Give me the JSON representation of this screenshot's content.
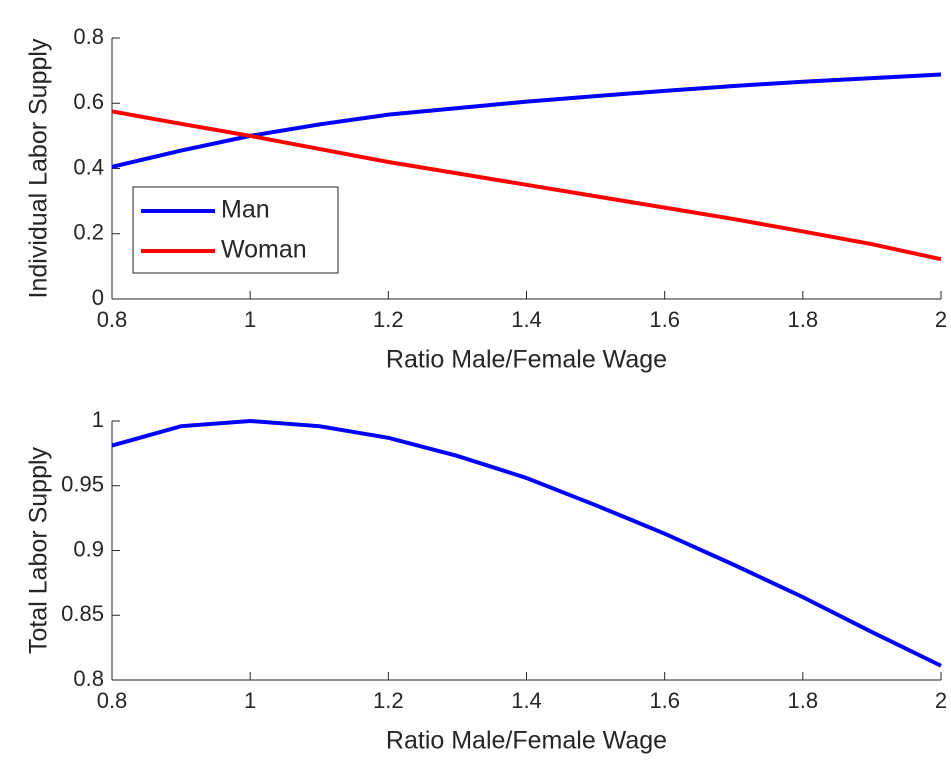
{
  "chart_data": [
    {
      "type": "line",
      "xlabel": "Ratio Male/Female Wage",
      "ylabel": "Individual Labor Supply",
      "x": [
        0.8,
        0.9,
        1.0,
        1.1,
        1.2,
        1.3,
        1.4,
        1.5,
        1.6,
        1.7,
        1.8,
        1.9,
        2.0
      ],
      "series": [
        {
          "name": "Man",
          "color": "#0000ff",
          "values": [
            0.405,
            0.455,
            0.5,
            0.535,
            0.565,
            0.585,
            0.605,
            0.622,
            0.638,
            0.653,
            0.666,
            0.677,
            0.688
          ]
        },
        {
          "name": "Woman",
          "color": "#ff0000",
          "values": [
            0.575,
            0.537,
            0.5,
            0.46,
            0.42,
            0.385,
            0.35,
            0.315,
            0.28,
            0.245,
            0.207,
            0.168,
            0.122
          ]
        }
      ],
      "xlim": [
        0.8,
        2
      ],
      "xticks": [
        0.8,
        1,
        1.2,
        1.4,
        1.6,
        1.8,
        2
      ],
      "ylim": [
        0,
        0.8
      ],
      "yticks": [
        0,
        0.2,
        0.4,
        0.6,
        0.8
      ],
      "legend": "southwest"
    },
    {
      "type": "line",
      "xlabel": "Ratio Male/Female Wage",
      "ylabel": "Total Labor Supply",
      "x": [
        0.8,
        0.9,
        1.0,
        1.1,
        1.2,
        1.3,
        1.4,
        1.5,
        1.6,
        1.7,
        1.8,
        1.9,
        2.0
      ],
      "series": [
        {
          "color": "#0000ff",
          "values": [
            0.981,
            0.996,
            1.0,
            0.996,
            0.987,
            0.973,
            0.956,
            0.935,
            0.913,
            0.889,
            0.864,
            0.837,
            0.811
          ]
        }
      ],
      "xlim": [
        0.8,
        2
      ],
      "xticks": [
        0.8,
        1,
        1.2,
        1.4,
        1.6,
        1.8,
        2
      ],
      "ylim": [
        0.8,
        1
      ],
      "yticks": [
        0.8,
        0.85,
        0.9,
        0.95,
        1
      ]
    }
  ]
}
